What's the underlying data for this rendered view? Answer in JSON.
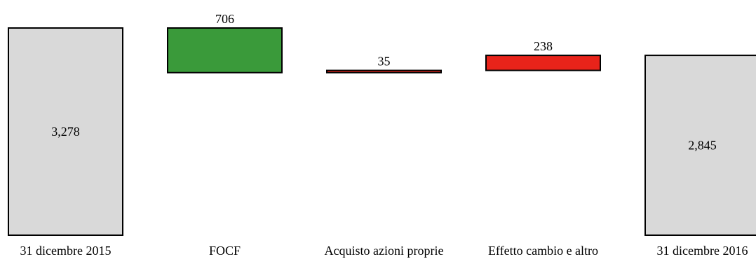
{
  "chart_data": {
    "type": "bar",
    "subtype": "waterfall",
    "categories": [
      "31 dicembre 2015",
      "FOCF",
      "Acquisto azioni proprie",
      "Effetto cambio e altro",
      "31 dicembre 2016"
    ],
    "bars": [
      {
        "category": "31 dicembre 2015",
        "kind": "total",
        "value": 3278,
        "label": "3,278"
      },
      {
        "category": "FOCF",
        "kind": "decrease",
        "value": 706,
        "label": "706"
      },
      {
        "category": "Acquisto azioni proprie",
        "kind": "increase",
        "value": 35,
        "label": "35"
      },
      {
        "category": "Effetto cambio e altro",
        "kind": "increase",
        "value": 238,
        "label": "238"
      },
      {
        "category": "31 dicembre 2016",
        "kind": "total",
        "value": 2845,
        "label": "2,845"
      }
    ],
    "colors": {
      "total": "#d9d9d9",
      "decrease": "#3a9a3a",
      "increase": "#e8231a"
    },
    "title": "",
    "xlabel": "",
    "ylabel": "",
    "ylim": [
      0,
      3278
    ],
    "grid": false,
    "legend": "none"
  }
}
